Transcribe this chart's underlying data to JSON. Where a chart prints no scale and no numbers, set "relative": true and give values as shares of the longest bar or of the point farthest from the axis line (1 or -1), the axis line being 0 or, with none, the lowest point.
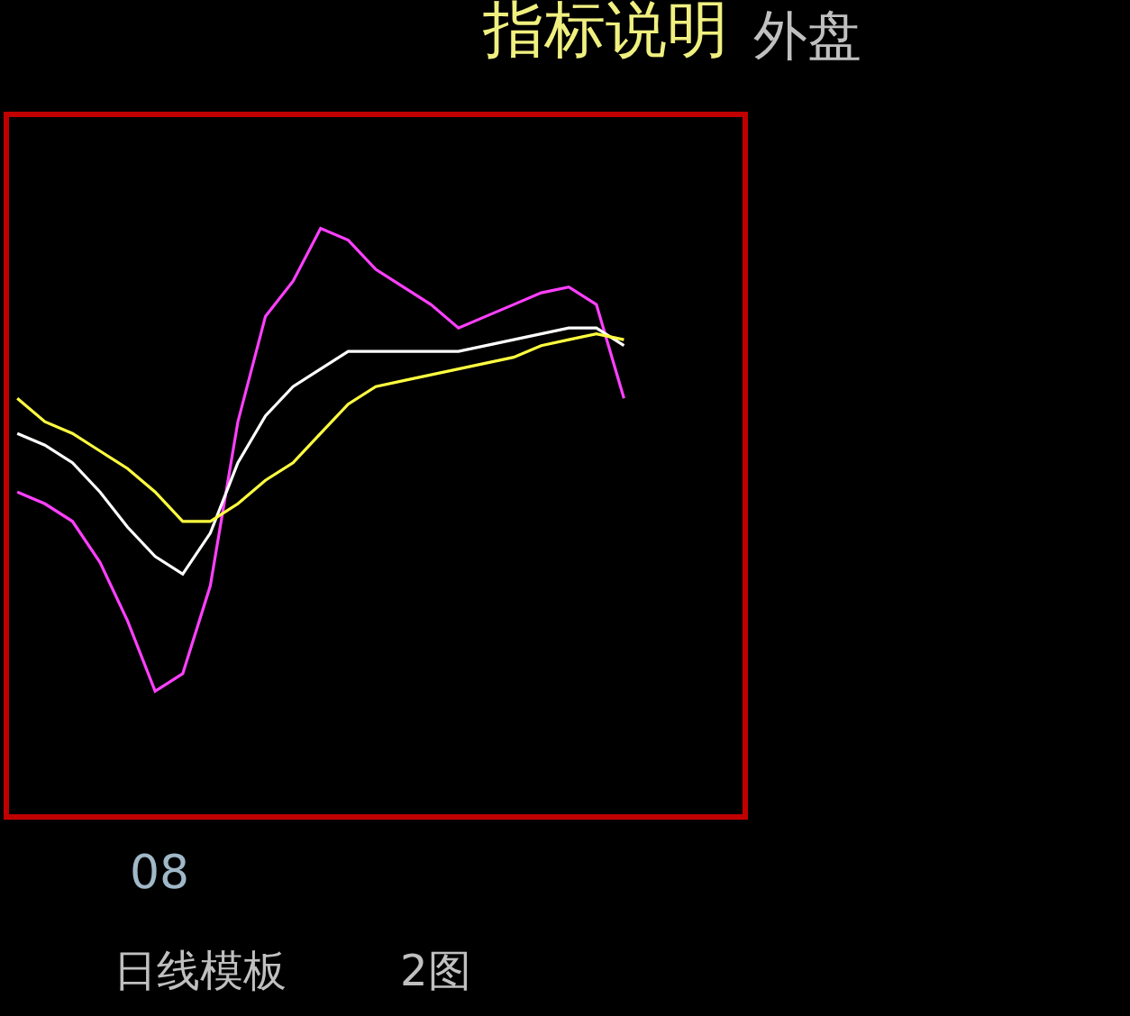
{
  "chart_data": {
    "type": "line",
    "title": "指标说明",
    "relative": true,
    "annotations": [
      "外盘",
      "日线模板",
      "2图",
      "08"
    ],
    "marker": "none",
    "line_style": "solid",
    "categories": [
      null,
      null,
      null,
      null,
      null,
      null,
      null,
      null,
      null,
      null,
      null,
      null,
      null,
      null,
      null,
      null,
      null,
      null,
      null,
      null,
      null,
      null,
      null,
      null,
      null,
      null,
      null
    ],
    "series": [
      {
        "color": "#ff40ff",
        "values": [
          0.55,
          0.53,
          0.5,
          0.43,
          0.33,
          0.21,
          0.24,
          0.39,
          0.67,
          0.85,
          0.91,
          1,
          0.98,
          0.93,
          0.9,
          0.87,
          0.83,
          0.85,
          0.87,
          0.89,
          0.9,
          0.87,
          0.71,
          null,
          null,
          null,
          null
        ]
      },
      {
        "color": "#ffffff",
        "values": [
          0.65,
          0.63,
          0.6,
          0.55,
          0.49,
          0.44,
          0.41,
          0.48,
          0.6,
          0.68,
          0.73,
          0.76,
          0.79,
          0.79,
          0.79,
          0.79,
          0.79,
          0.8,
          0.81,
          0.82,
          0.83,
          0.83,
          0.8,
          null,
          null,
          null,
          null
        ]
      },
      {
        "color": "#ffff40",
        "values": [
          0.71,
          0.67,
          0.65,
          0.62,
          0.59,
          0.55,
          0.5,
          0.5,
          0.53,
          0.57,
          0.6,
          0.65,
          0.7,
          0.73,
          0.74,
          0.75,
          0.76,
          0.77,
          0.78,
          0.8,
          0.81,
          0.82,
          0.81,
          null,
          null,
          null,
          null
        ]
      }
    ]
  }
}
